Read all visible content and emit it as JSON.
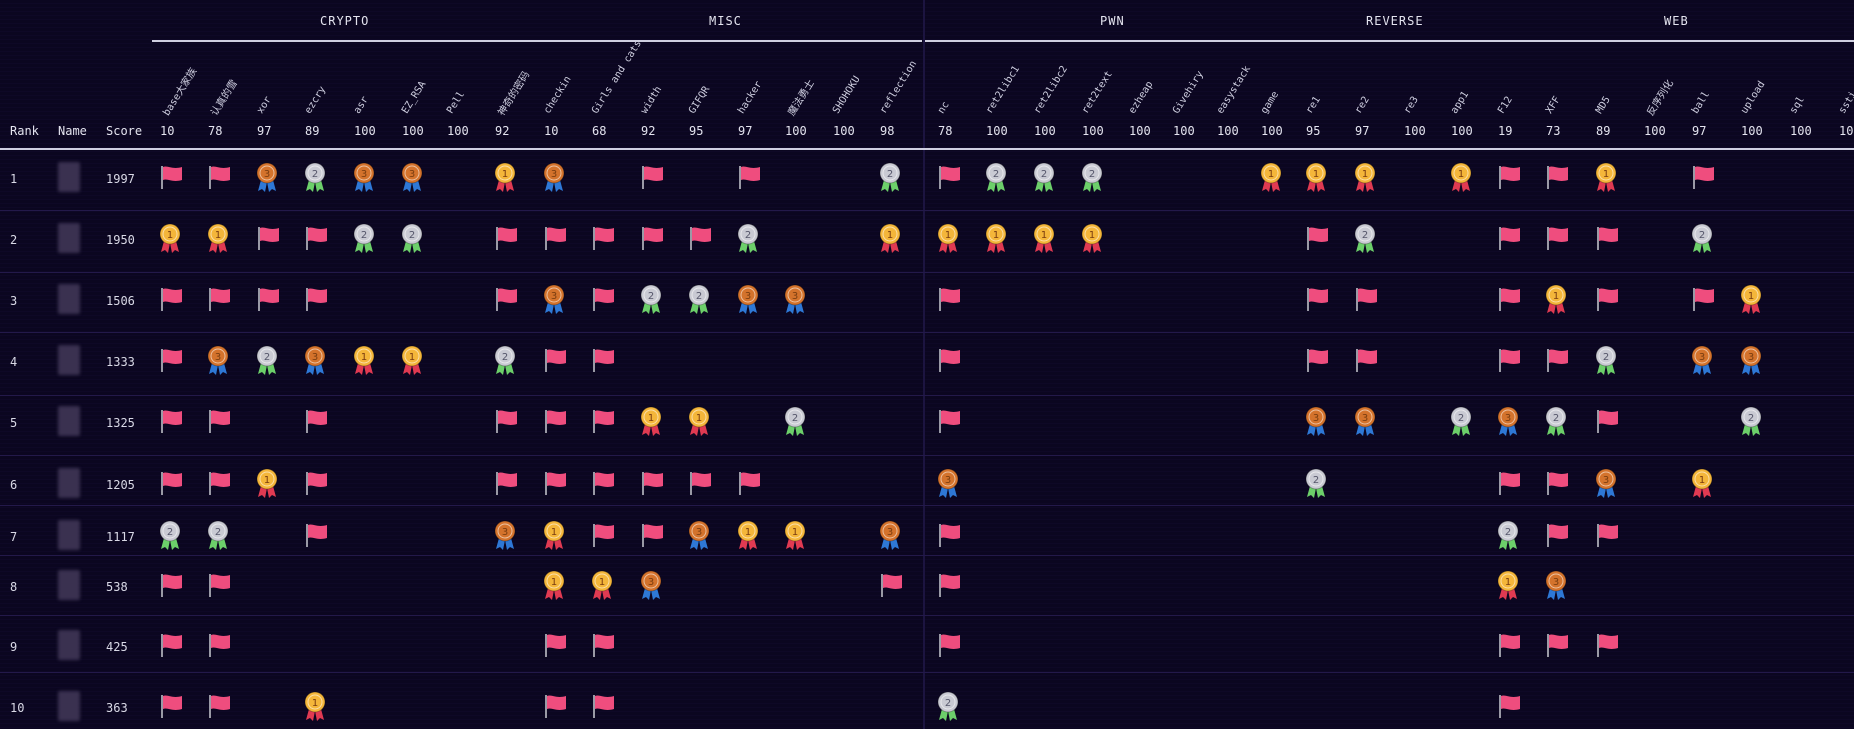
{
  "columns": {
    "rank": "Rank",
    "name": "Name",
    "score": "Score"
  },
  "categories": [
    "CRYPTO",
    "MISC",
    "PWN",
    "REVERSE",
    "WEB"
  ],
  "challenges": [
    {
      "name": "base大家族",
      "points": "10"
    },
    {
      "name": "认真的雪",
      "points": "78"
    },
    {
      "name": "xor",
      "points": "97"
    },
    {
      "name": "ezcry",
      "points": "89"
    },
    {
      "name": "asr",
      "points": "100"
    },
    {
      "name": "EZ_RSA",
      "points": "100"
    },
    {
      "name": "Pell",
      "points": "100"
    },
    {
      "name": "神奇的密码",
      "points": "92"
    },
    {
      "name": "checkin",
      "points": "10"
    },
    {
      "name": "Girls and cats",
      "points": "68"
    },
    {
      "name": "width",
      "points": "92"
    },
    {
      "name": "GIFQR",
      "points": "95"
    },
    {
      "name": "hacker",
      "points": "97"
    },
    {
      "name": "魔法勇士",
      "points": "100"
    },
    {
      "name": "SHOHOKU",
      "points": "100"
    },
    {
      "name": "reflection",
      "points": "98"
    },
    {
      "name": "nc",
      "points": "78"
    },
    {
      "name": "ret2libc1",
      "points": "100"
    },
    {
      "name": "ret2libc2",
      "points": "100"
    },
    {
      "name": "ret2text",
      "points": "100"
    },
    {
      "name": "ezheap",
      "points": "100"
    },
    {
      "name": "Givehiry",
      "points": "100"
    },
    {
      "name": "easystack",
      "points": "100"
    },
    {
      "name": "game",
      "points": "100"
    },
    {
      "name": "re1",
      "points": "95"
    },
    {
      "name": "re2",
      "points": "97"
    },
    {
      "name": "re3",
      "points": "100"
    },
    {
      "name": "app1",
      "points": "100"
    },
    {
      "name": "F12",
      "points": "19"
    },
    {
      "name": "XFF",
      "points": "73"
    },
    {
      "name": "MD5",
      "points": "89"
    },
    {
      "name": "反序列化",
      "points": "100"
    },
    {
      "name": "ball",
      "points": "97"
    },
    {
      "name": "upload",
      "points": "100"
    },
    {
      "name": "sql",
      "points": "100"
    },
    {
      "name": "ssti",
      "points": "100"
    }
  ],
  "rows": [
    {
      "rank": "1",
      "score": "1997",
      "cells": [
        "F",
        "F",
        "3",
        "2",
        "3",
        "3",
        "",
        "1",
        "3",
        "",
        "F",
        "",
        "F",
        "",
        "",
        "2",
        "F",
        "2",
        "2",
        "2",
        "",
        "",
        "",
        "1",
        "1",
        "1",
        "",
        "1",
        "F",
        "F",
        "1",
        "",
        "F",
        "",
        "",
        ""
      ]
    },
    {
      "rank": "2",
      "score": "1950",
      "cells": [
        "1",
        "1",
        "F",
        "F",
        "2",
        "2",
        "",
        "F",
        "F",
        "F",
        "F",
        "F",
        "2",
        "",
        "",
        "1",
        "1",
        "1",
        "1",
        "1",
        "",
        "",
        "",
        "",
        "F",
        "2",
        "",
        "",
        "F",
        "F",
        "F",
        "",
        "2",
        "",
        "",
        ""
      ]
    },
    {
      "rank": "3",
      "score": "1506",
      "cells": [
        "F",
        "F",
        "F",
        "F",
        "",
        "",
        "",
        "F",
        "3",
        "F",
        "2",
        "2",
        "3",
        "3",
        "",
        "",
        "F",
        "",
        "",
        "",
        "",
        "",
        "",
        "",
        "F",
        "F",
        "",
        "",
        "F",
        "1",
        "F",
        "",
        "F",
        "1",
        "",
        ""
      ]
    },
    {
      "rank": "4",
      "score": "1333",
      "cells": [
        "F",
        "3",
        "2",
        "3",
        "1",
        "1",
        "",
        "2",
        "F",
        "F",
        "",
        "",
        "",
        "",
        "",
        "",
        "F",
        "",
        "",
        "",
        "",
        "",
        "",
        "",
        "F",
        "F",
        "",
        "",
        "F",
        "F",
        "2",
        "",
        "3",
        "3",
        "",
        ""
      ]
    },
    {
      "rank": "5",
      "score": "1325",
      "cells": [
        "F",
        "F",
        "",
        "F",
        "",
        "",
        "",
        "F",
        "F",
        "F",
        "1",
        "1",
        "",
        "2",
        "",
        "",
        "F",
        "",
        "",
        "",
        "",
        "",
        "",
        "",
        "3",
        "3",
        "",
        "2",
        "3",
        "2",
        "F",
        "",
        "",
        "2",
        "",
        ""
      ]
    },
    {
      "rank": "6",
      "score": "1205",
      "cells": [
        "F",
        "F",
        "1",
        "F",
        "",
        "",
        "",
        "F",
        "F",
        "F",
        "F",
        "F",
        "F",
        "",
        "",
        "",
        "3",
        "",
        "",
        "",
        "",
        "",
        "",
        "",
        "2",
        "",
        "",
        "",
        "F",
        "F",
        "3",
        "",
        "1",
        "",
        "",
        ""
      ]
    },
    {
      "rank": "7",
      "score": "1117",
      "cells": [
        "2",
        "2",
        "",
        "F",
        "",
        "",
        "",
        "3",
        "1",
        "F",
        "F",
        "3",
        "1",
        "1",
        "",
        "3",
        "F",
        "",
        "",
        "",
        "",
        "",
        "",
        "",
        "",
        "",
        "",
        "",
        "2",
        "F",
        "F",
        "",
        "",
        "",
        "",
        ""
      ]
    },
    {
      "rank": "8",
      "score": "538",
      "cells": [
        "F",
        "F",
        "",
        "",
        "",
        "",
        "",
        "",
        "1",
        "1",
        "3",
        "",
        "",
        "",
        "",
        "F",
        "F",
        "",
        "",
        "",
        "",
        "",
        "",
        "",
        "",
        "",
        "",
        "",
        "1",
        "3",
        "",
        "",
        "",
        "",
        "",
        ""
      ]
    },
    {
      "rank": "9",
      "score": "425",
      "cells": [
        "F",
        "F",
        "",
        "",
        "",
        "",
        "",
        "",
        "F",
        "F",
        "",
        "",
        "",
        "",
        "",
        "",
        "F",
        "",
        "",
        "",
        "",
        "",
        "",
        "",
        "",
        "",
        "",
        "",
        "F",
        "F",
        "F",
        "",
        "",
        "",
        "",
        ""
      ]
    },
    {
      "rank": "10",
      "score": "363",
      "cells": [
        "F",
        "F",
        "",
        "1",
        "",
        "",
        "",
        "",
        "F",
        "F",
        "",
        "",
        "",
        "",
        "",
        "",
        "2",
        "",
        "",
        "",
        "",
        "",
        "",
        "",
        "",
        "",
        "",
        "",
        "F",
        "",
        "",
        "",
        "",
        "",
        "",
        ""
      ]
    }
  ],
  "colors": {
    "background": "#0b0620",
    "flag": "#ef4d7e",
    "gold": "#f4b63a",
    "silver": "#c9cad3",
    "bronze": "#d4732c",
    "ribbon_green": "#6ccf6a",
    "ribbon_blue": "#2e78d6",
    "ribbon_red": "#e03a52"
  },
  "icons": {
    "F": "red-flag-icon",
    "1": "gold-medal-icon",
    "2": "silver-medal-icon",
    "3": "bronze-medal-icon"
  }
}
